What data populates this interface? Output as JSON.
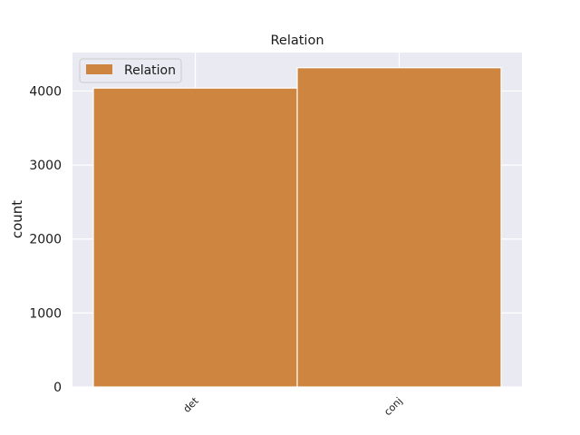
{
  "chart_data": {
    "type": "bar",
    "title": "Relation",
    "xlabel": "",
    "ylabel": "count",
    "categories": [
      "det",
      "conj"
    ],
    "series": [
      {
        "name": "Relation",
        "values": [
          4040,
          4315
        ]
      }
    ],
    "ylim": [
      0,
      4520
    ],
    "yticks": [
      0,
      1000,
      2000,
      3000,
      4000
    ],
    "grid": true,
    "legend_position": "top-left",
    "x_tick_rotation_deg": 45,
    "colors": {
      "bar": "#cd853f",
      "plot_background": "#eaeaf2",
      "grid": "#ffffff"
    }
  }
}
